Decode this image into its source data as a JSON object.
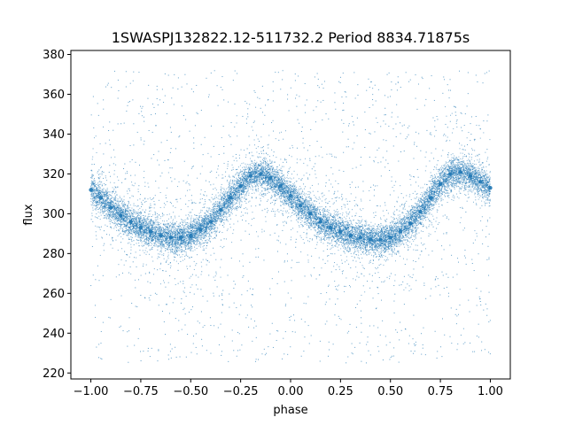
{
  "chart_data": {
    "type": "scatter",
    "title": "1SWASPJ132822.12-511732.2 Period 8834.71875s",
    "xlabel": "phase",
    "ylabel": "flux",
    "xlim": [
      -1.1,
      1.1
    ],
    "ylim": [
      217,
      382
    ],
    "x_ticks": [
      -1.0,
      -0.75,
      -0.5,
      -0.25,
      0.0,
      0.25,
      0.5,
      0.75,
      1.0
    ],
    "x_tick_labels": [
      "−1.00",
      "−0.75",
      "−0.50",
      "−0.25",
      "0.00",
      "0.25",
      "0.50",
      "0.75",
      "1.00"
    ],
    "y_ticks": [
      220,
      240,
      260,
      280,
      300,
      320,
      340,
      360,
      380
    ],
    "y_tick_labels": [
      "220",
      "240",
      "260",
      "280",
      "300",
      "320",
      "340",
      "360",
      "380"
    ],
    "grid": false,
    "marker_color": "#1f77b4",
    "light_curve": {
      "phase": [
        -1.0,
        -0.95,
        -0.9,
        -0.85,
        -0.8,
        -0.75,
        -0.7,
        -0.65,
        -0.6,
        -0.55,
        -0.5,
        -0.45,
        -0.4,
        -0.35,
        -0.3,
        -0.25,
        -0.2,
        -0.15,
        -0.1,
        -0.05,
        0.0,
        0.05,
        0.1,
        0.15,
        0.2,
        0.25,
        0.3,
        0.35,
        0.4,
        0.45,
        0.5,
        0.55,
        0.6,
        0.65,
        0.7,
        0.75,
        0.8,
        0.85,
        0.9,
        0.95,
        1.0
      ],
      "flux": [
        312,
        308,
        303,
        299,
        296,
        293,
        291,
        289,
        288,
        288,
        289,
        292,
        296,
        302,
        308,
        314,
        319,
        320,
        318,
        314,
        309,
        304,
        300,
        296,
        293,
        291,
        289,
        288,
        287,
        287,
        288,
        291,
        295,
        301,
        308,
        315,
        320,
        321,
        319,
        316,
        313
      ],
      "scatter_width": 8
    },
    "outlier_flux_range": [
      225,
      372
    ]
  }
}
